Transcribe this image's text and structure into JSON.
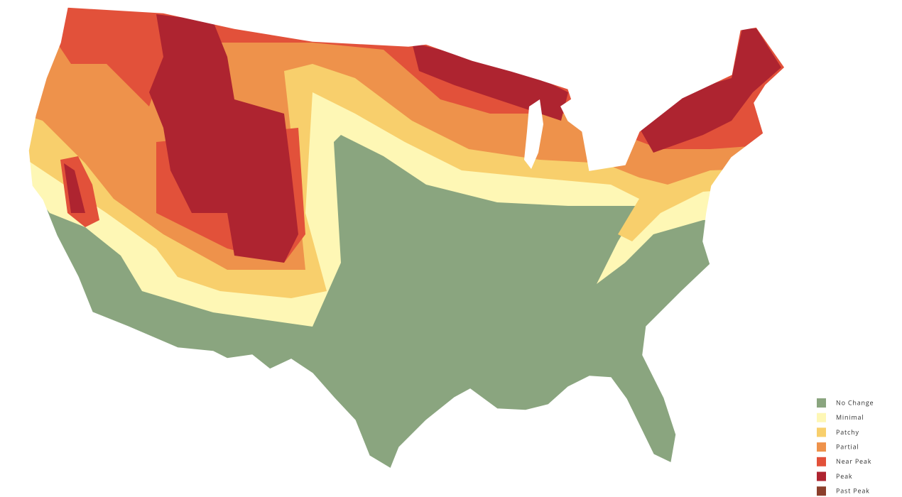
{
  "legend": {
    "items": [
      {
        "label": "No Change",
        "color": "#8aa57f"
      },
      {
        "label": "Minimal",
        "color": "#fef7b5"
      },
      {
        "label": "Patchy",
        "color": "#f8cf6c"
      },
      {
        "label": "Partial",
        "color": "#ee924b"
      },
      {
        "label": "Near Peak",
        "color": "#e2513a"
      },
      {
        "label": "Peak",
        "color": "#ae2430"
      },
      {
        "label": "Past Peak",
        "color": "#8b3f2b"
      }
    ]
  }
}
